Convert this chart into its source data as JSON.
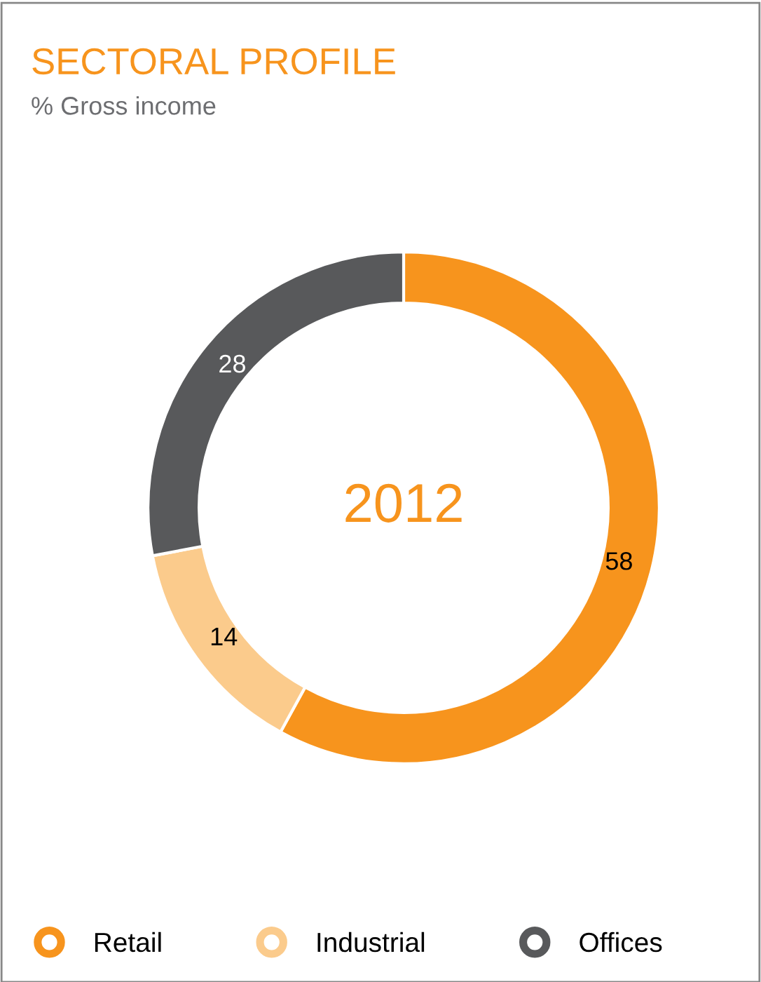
{
  "chart_data": {
    "type": "donut",
    "title": "SECTORAL PROFILE",
    "subtitle": "% Gross income",
    "annotations": [
      "2012"
    ],
    "categories": [
      "Retail",
      "Industrial",
      "Offices"
    ],
    "values": [
      58,
      14,
      28
    ],
    "colors": [
      "#f7941d",
      "#fbcb8c",
      "#58595b"
    ],
    "data_labels": true,
    "legend": "bottom"
  }
}
